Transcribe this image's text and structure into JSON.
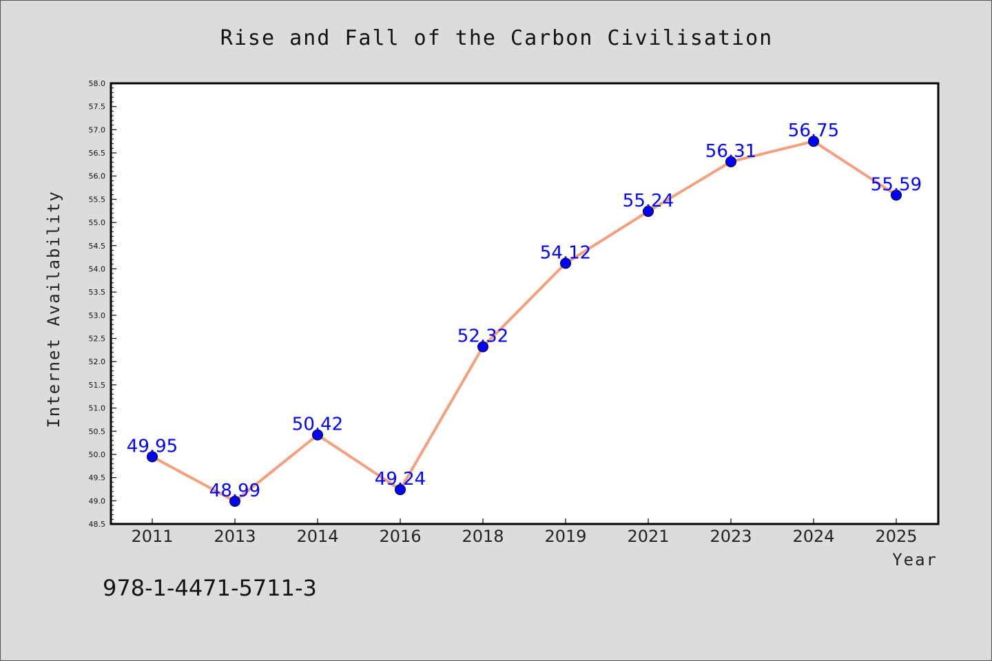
{
  "chart_data": {
    "type": "line",
    "title": "Rise and Fall of the Carbon Civilisation",
    "xlabel": "Year",
    "ylabel": "Internet Availability",
    "categories": [
      "2011",
      "2013",
      "2014",
      "2016",
      "2018",
      "2019",
      "2021",
      "2023",
      "2024",
      "2025"
    ],
    "series": [
      {
        "values": [
          49.95,
          48.99,
          50.42,
          49.24,
          52.32,
          54.12,
          55.24,
          56.31,
          56.75,
          55.59
        ],
        "data_labels": [
          "49.95",
          "48.99",
          "50.42",
          "49.24",
          "52.32",
          "54.12",
          "55.24",
          "56.31",
          "56.75",
          "55.59"
        ]
      }
    ],
    "ylim": [
      48.5,
      58.0
    ],
    "yticks": [
      "48.5",
      "49.0",
      "49.5",
      "50.0",
      "50.5",
      "51.0",
      "51.5",
      "52.0",
      "52.5",
      "53.0",
      "53.5",
      "54.0",
      "54.5",
      "55.0",
      "55.5",
      "56.0",
      "56.5",
      "57.0",
      "57.5",
      "58.0"
    ],
    "grid": false,
    "line_color": "#f4a07e",
    "marker_color": "#0000ff",
    "label_color": "#0000ff",
    "background_color": "#dcdcdc",
    "plot_background": "#ffffff"
  },
  "footer": {
    "isbn": "978-1-4471-5711-3"
  }
}
